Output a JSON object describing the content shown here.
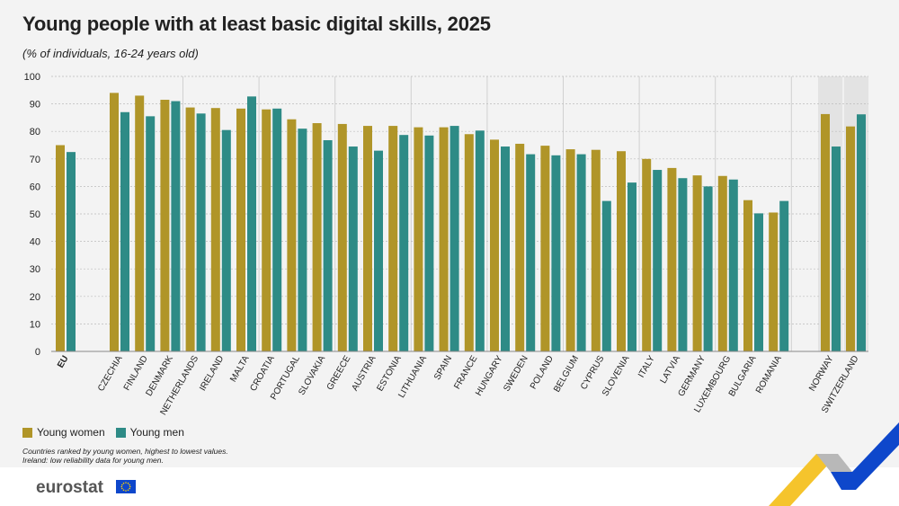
{
  "title": "Young people with at least basic digital skills, 2025",
  "subtitle": "(% of individuals, 16-24 years old)",
  "legend": {
    "women": "Young women",
    "men": "Young men"
  },
  "notes": [
    "Countries ranked by young women, highest to lowest values.",
    "Ireland: low reliability data for young men."
  ],
  "logo": "eurostat",
  "colors": {
    "women": "#b09528",
    "men": "#2e8b86",
    "highlight_bg": "#e3e3e3",
    "grid": "#bdbdbd"
  },
  "chart_data": {
    "type": "bar",
    "ylim": [
      0,
      100
    ],
    "yticks": [
      0,
      10,
      20,
      30,
      40,
      50,
      60,
      70,
      80,
      90,
      100
    ],
    "categories": [
      "EU",
      "CZECHIA",
      "FINLAND",
      "DENMARK",
      "NETHERLANDS",
      "IRELAND",
      "MALTA",
      "CROATIA",
      "PORTUGAL",
      "SLOVAKIA",
      "GREECE",
      "AUSTRIA",
      "ESTONIA",
      "LITHUANIA",
      "SPAIN",
      "FRANCE",
      "HUNGARY",
      "SWEDEN",
      "POLAND",
      "BELGIUM",
      "CYPRUS",
      "SLOVENIA",
      "ITALY",
      "LATVIA",
      "GERMANY",
      "LUXEMBOURG",
      "BULGARIA",
      "ROMANIA",
      "NORWAY",
      "SWITZERLAND"
    ],
    "series": [
      {
        "name": "Young women",
        "values": [
          75,
          94,
          93,
          91.5,
          88.7,
          88.5,
          88.3,
          88,
          84.4,
          83,
          82.7,
          82,
          82,
          81.5,
          81.5,
          79,
          77,
          75.5,
          74.8,
          73.5,
          73.3,
          72.8,
          70,
          66.7,
          64,
          63.8,
          55,
          50.5,
          86.3,
          81.8
        ]
      },
      {
        "name": "Young men",
        "values": [
          72.5,
          87,
          85.5,
          91,
          86.5,
          80.5,
          92.7,
          88.3,
          81,
          76.8,
          74.5,
          73,
          78.7,
          78.5,
          82,
          80.3,
          74.5,
          71.7,
          71.3,
          71.7,
          54.7,
          61.4,
          66,
          63,
          60,
          62.5,
          50.2,
          54.7,
          74.5,
          86.2
        ]
      }
    ]
  }
}
